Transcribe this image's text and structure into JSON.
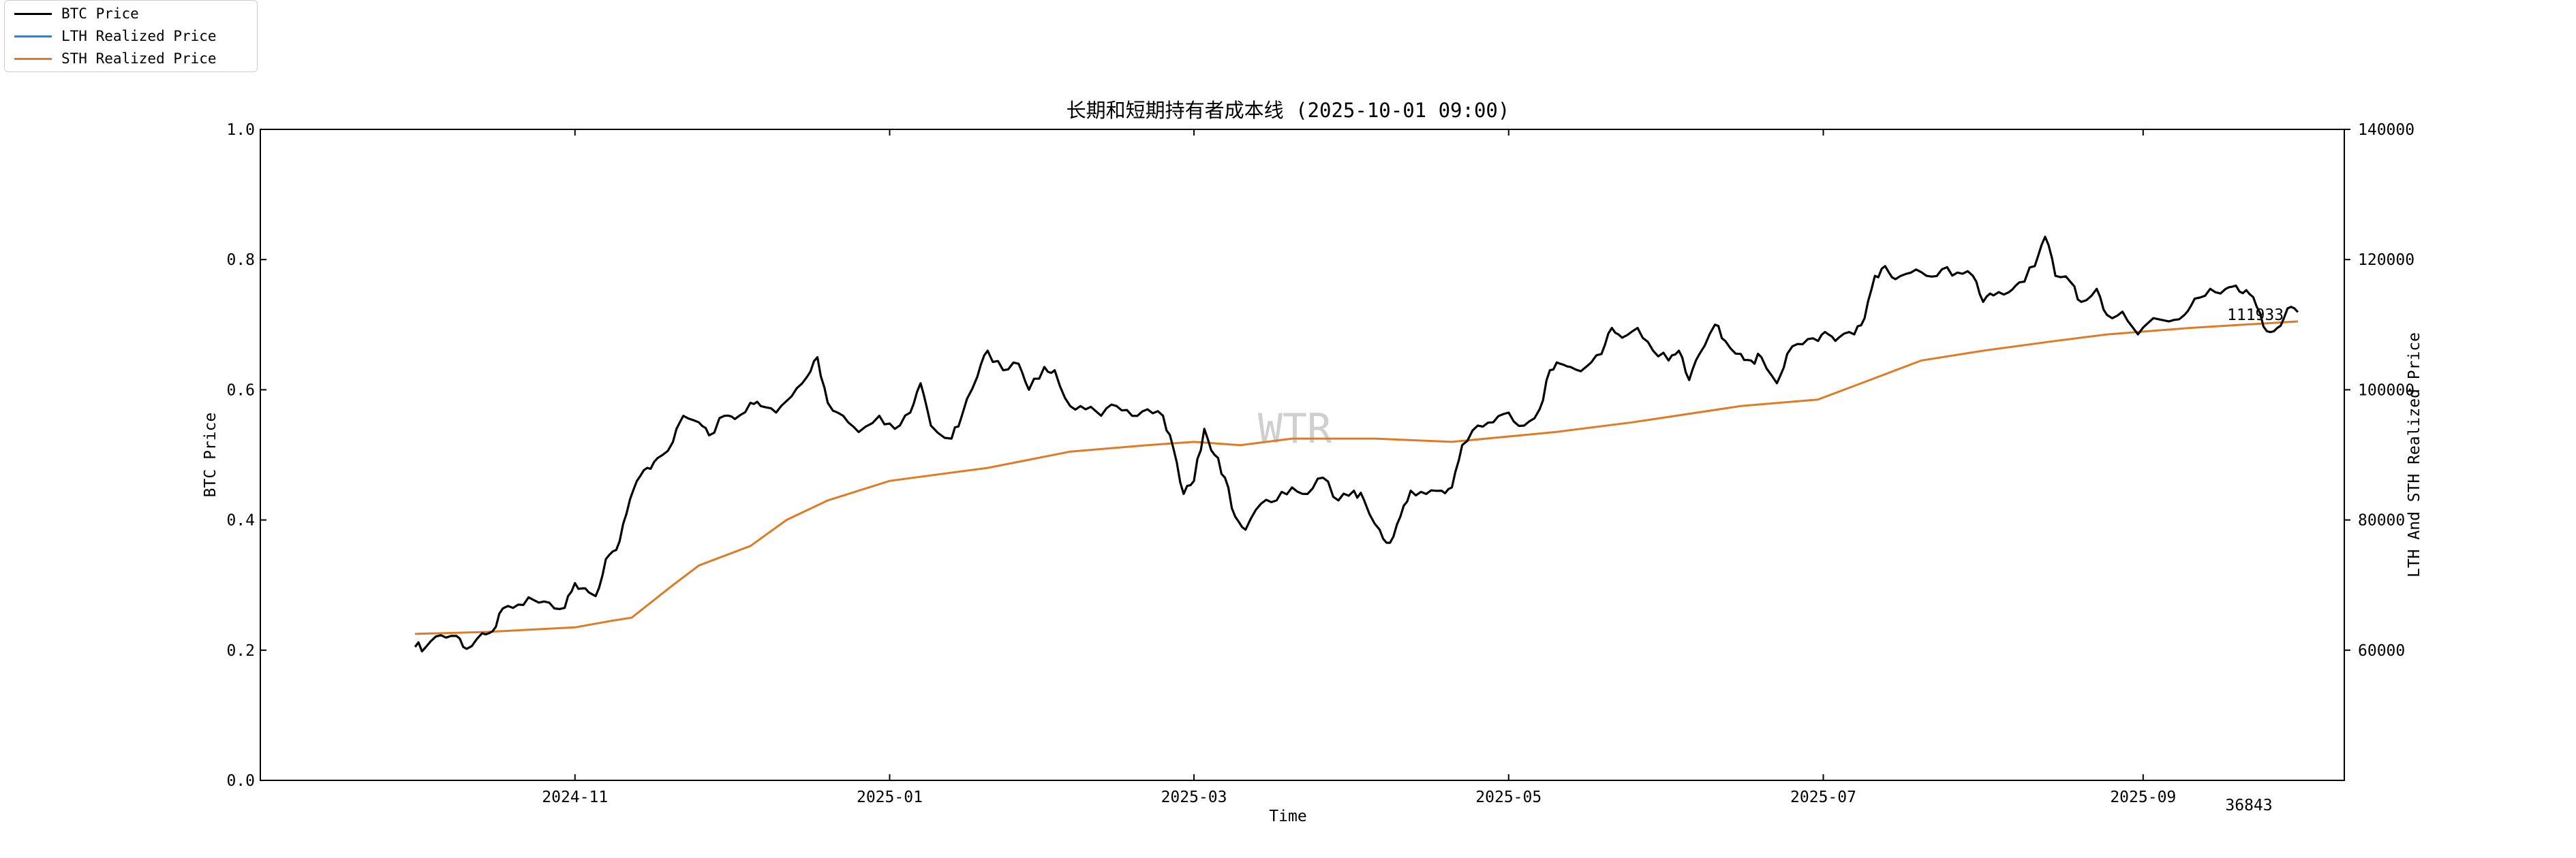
{
  "chart_data": {
    "type": "line",
    "title": "长期和短期持有者成本线 (2025-10-01 09:00)",
    "xlabel": "Time",
    "ylabel_left": "BTC Price",
    "ylabel_right": "LTH And STH Realized Price",
    "left_ylim": [
      0.0,
      1.0
    ],
    "left_yticks": [
      "0.0",
      "0.2",
      "0.4",
      "0.6",
      "0.8",
      "1.0"
    ],
    "right_ylim": [
      40000,
      140000
    ],
    "right_yticks": [
      "60000",
      "80000",
      "100000",
      "120000",
      "140000"
    ],
    "xlim": [
      "2024-09-01",
      "2025-10-10"
    ],
    "xticks": [
      "2024-11",
      "2025-01",
      "2025-03",
      "2025-05",
      "2025-07",
      "2025-09"
    ],
    "legend_position": "top-left",
    "watermark": "WTR",
    "annotations": {
      "last_price": "111933",
      "corner_value": "36843"
    },
    "series": [
      {
        "name": "BTC Price",
        "color": "#000000",
        "points": [
          [
            "2024-10-01",
            60500
          ],
          [
            "2024-10-03",
            60400
          ],
          [
            "2024-10-06",
            62300
          ],
          [
            "2024-10-09",
            62200
          ],
          [
            "2024-10-11",
            60200
          ],
          [
            "2024-10-14",
            62600
          ],
          [
            "2024-10-16",
            62900
          ],
          [
            "2024-10-18",
            66400
          ],
          [
            "2024-10-21",
            67000
          ],
          [
            "2024-10-24",
            67700
          ],
          [
            "2024-10-27",
            67300
          ],
          [
            "2024-10-30",
            66500
          ],
          [
            "2024-11-01",
            70300
          ],
          [
            "2024-11-03",
            69500
          ],
          [
            "2024-11-05",
            68300
          ],
          [
            "2024-11-07",
            74000
          ],
          [
            "2024-11-09",
            75400
          ],
          [
            "2024-11-11",
            81000
          ],
          [
            "2024-11-13",
            86000
          ],
          [
            "2024-11-15",
            88000
          ],
          [
            "2024-11-17",
            89500
          ],
          [
            "2024-11-20",
            92000
          ],
          [
            "2024-11-22",
            96000
          ],
          [
            "2024-11-25",
            95000
          ],
          [
            "2024-11-27",
            93000
          ],
          [
            "2024-11-30",
            96000
          ],
          [
            "2024-12-02",
            95500
          ],
          [
            "2024-12-05",
            98000
          ],
          [
            "2024-12-07",
            97500
          ],
          [
            "2024-12-10",
            96500
          ],
          [
            "2024-12-13",
            99000
          ],
          [
            "2024-12-16",
            102000
          ],
          [
            "2024-12-18",
            105000
          ],
          [
            "2024-12-20",
            98000
          ],
          [
            "2024-12-23",
            96000
          ],
          [
            "2024-12-26",
            93500
          ],
          [
            "2024-12-30",
            96000
          ],
          [
            "2025-01-02",
            94000
          ],
          [
            "2025-01-05",
            96500
          ],
          [
            "2025-01-07",
            101000
          ],
          [
            "2025-01-09",
            94500
          ],
          [
            "2025-01-13",
            92500
          ],
          [
            "2025-01-15",
            96000
          ],
          [
            "2025-01-18",
            102000
          ],
          [
            "2025-01-20",
            106000
          ],
          [
            "2025-01-23",
            103000
          ],
          [
            "2025-01-26",
            104000
          ],
          [
            "2025-01-28",
            100000
          ],
          [
            "2025-01-31",
            103500
          ],
          [
            "2025-02-02",
            103000
          ],
          [
            "2025-02-05",
            97500
          ],
          [
            "2025-02-08",
            97000
          ],
          [
            "2025-02-11",
            96000
          ],
          [
            "2025-02-14",
            97500
          ],
          [
            "2025-02-17",
            96000
          ],
          [
            "2025-02-20",
            97000
          ],
          [
            "2025-02-23",
            96000
          ],
          [
            "2025-02-25",
            91000
          ],
          [
            "2025-02-27",
            84000
          ],
          [
            "2025-03-01",
            86000
          ],
          [
            "2025-03-03",
            94000
          ],
          [
            "2025-03-05",
            90000
          ],
          [
            "2025-03-07",
            86500
          ],
          [
            "2025-03-09",
            80500
          ],
          [
            "2025-03-11",
            78500
          ],
          [
            "2025-03-14",
            82500
          ],
          [
            "2025-03-17",
            83000
          ],
          [
            "2025-03-20",
            85000
          ],
          [
            "2025-03-23",
            84000
          ],
          [
            "2025-03-26",
            86500
          ],
          [
            "2025-03-29",
            83000
          ],
          [
            "2025-04-01",
            84500
          ],
          [
            "2025-04-03",
            83000
          ],
          [
            "2025-04-06",
            78500
          ],
          [
            "2025-04-08",
            76500
          ],
          [
            "2025-04-10",
            80500
          ],
          [
            "2025-04-12",
            84500
          ],
          [
            "2025-04-15",
            84000
          ],
          [
            "2025-04-18",
            84500
          ],
          [
            "2025-04-20",
            85000
          ],
          [
            "2025-04-22",
            91500
          ],
          [
            "2025-04-25",
            94500
          ],
          [
            "2025-04-28",
            95000
          ],
          [
            "2025-05-01",
            96500
          ],
          [
            "2025-05-04",
            94500
          ],
          [
            "2025-05-07",
            97000
          ],
          [
            "2025-05-09",
            103000
          ],
          [
            "2025-05-11",
            104000
          ],
          [
            "2025-05-13",
            103500
          ],
          [
            "2025-05-16",
            103500
          ],
          [
            "2025-05-19",
            105500
          ],
          [
            "2025-05-21",
            109500
          ],
          [
            "2025-05-23",
            108000
          ],
          [
            "2025-05-26",
            109500
          ],
          [
            "2025-05-29",
            106000
          ],
          [
            "2025-06-01",
            104500
          ],
          [
            "2025-06-03",
            106000
          ],
          [
            "2025-06-05",
            101500
          ],
          [
            "2025-06-07",
            105500
          ],
          [
            "2025-06-10",
            110000
          ],
          [
            "2025-06-12",
            107500
          ],
          [
            "2025-06-15",
            105500
          ],
          [
            "2025-06-17",
            104500
          ],
          [
            "2025-06-19",
            105000
          ],
          [
            "2025-06-22",
            101000
          ],
          [
            "2025-06-24",
            105500
          ],
          [
            "2025-06-27",
            107000
          ],
          [
            "2025-06-30",
            107500
          ],
          [
            "2025-07-02",
            108500
          ],
          [
            "2025-07-04",
            108000
          ],
          [
            "2025-07-07",
            108500
          ],
          [
            "2025-07-09",
            111000
          ],
          [
            "2025-07-11",
            117500
          ],
          [
            "2025-07-13",
            119000
          ],
          [
            "2025-07-15",
            117000
          ],
          [
            "2025-07-18",
            118000
          ],
          [
            "2025-07-21",
            117500
          ],
          [
            "2025-07-24",
            118500
          ],
          [
            "2025-07-27",
            118000
          ],
          [
            "2025-07-30",
            117500
          ],
          [
            "2025-08-01",
            113500
          ],
          [
            "2025-08-03",
            114500
          ],
          [
            "2025-08-06",
            115000
          ],
          [
            "2025-08-08",
            116500
          ],
          [
            "2025-08-11",
            119000
          ],
          [
            "2025-08-13",
            123500
          ],
          [
            "2025-08-15",
            117500
          ],
          [
            "2025-08-18",
            116500
          ],
          [
            "2025-08-20",
            113500
          ],
          [
            "2025-08-23",
            115500
          ],
          [
            "2025-08-25",
            111500
          ],
          [
            "2025-08-28",
            112000
          ],
          [
            "2025-08-31",
            108500
          ],
          [
            "2025-09-03",
            111000
          ],
          [
            "2025-09-06",
            110500
          ],
          [
            "2025-09-09",
            111500
          ],
          [
            "2025-09-11",
            114000
          ],
          [
            "2025-09-14",
            115500
          ],
          [
            "2025-09-17",
            115500
          ],
          [
            "2025-09-19",
            116000
          ],
          [
            "2025-09-21",
            115300
          ],
          [
            "2025-09-23",
            112800
          ],
          [
            "2025-09-25",
            109000
          ],
          [
            "2025-09-27",
            109500
          ],
          [
            "2025-09-29",
            112500
          ],
          [
            "2025-10-01",
            111933
          ]
        ]
      },
      {
        "name": "LTH Realized Price",
        "color": "#3a7ec8",
        "points": []
      },
      {
        "name": "STH Realized Price",
        "color": "#e07b25",
        "points": [
          [
            "2024-10-01",
            62500
          ],
          [
            "2024-10-15",
            62800
          ],
          [
            "2024-11-01",
            63500
          ],
          [
            "2024-11-08",
            64500
          ],
          [
            "2024-11-12",
            65000
          ],
          [
            "2024-11-20",
            70000
          ],
          [
            "2024-11-25",
            73000
          ],
          [
            "2024-12-05",
            76000
          ],
          [
            "2024-12-12",
            80000
          ],
          [
            "2024-12-20",
            83000
          ],
          [
            "2025-01-01",
            86000
          ],
          [
            "2025-01-20",
            88000
          ],
          [
            "2025-02-05",
            90500
          ],
          [
            "2025-02-20",
            91500
          ],
          [
            "2025-03-01",
            92000
          ],
          [
            "2025-03-10",
            91500
          ],
          [
            "2025-03-20",
            92500
          ],
          [
            "2025-04-05",
            92500
          ],
          [
            "2025-04-20",
            92000
          ],
          [
            "2025-05-10",
            93500
          ],
          [
            "2025-05-25",
            95000
          ],
          [
            "2025-06-15",
            97500
          ],
          [
            "2025-06-30",
            98500
          ],
          [
            "2025-07-10",
            101500
          ],
          [
            "2025-07-20",
            104500
          ],
          [
            "2025-08-01",
            106000
          ],
          [
            "2025-08-15",
            107500
          ],
          [
            "2025-08-25",
            108500
          ],
          [
            "2025-09-10",
            109500
          ],
          [
            "2025-10-01",
            110500
          ]
        ]
      }
    ]
  }
}
